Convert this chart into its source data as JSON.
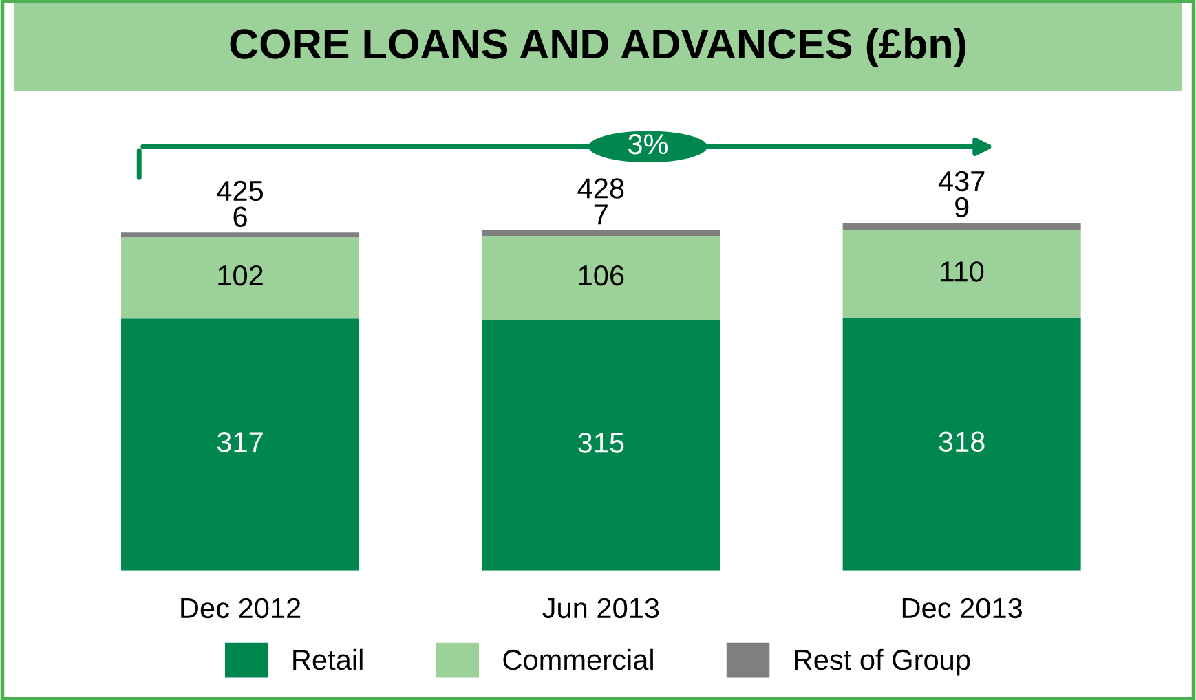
{
  "chart_data": {
    "type": "bar",
    "title": "CORE LOANS AND ADVANCES (£bn)",
    "stacked": true,
    "categories": [
      "Dec 2012",
      "Jun 2013",
      "Dec 2013"
    ],
    "series": [
      {
        "name": "Retail",
        "color": "#00874f",
        "values": [
          317,
          315,
          318
        ]
      },
      {
        "name": "Commercial",
        "color": "#9dd19a",
        "values": [
          102,
          106,
          110
        ]
      },
      {
        "name": "Rest of Group",
        "color": "#7f7f7f",
        "values": [
          6,
          7,
          9
        ]
      }
    ],
    "totals": [
      "425",
      "428",
      "437"
    ],
    "data_labels": true,
    "legend": "bottom",
    "grid": false,
    "annotations": [
      "3%"
    ]
  }
}
